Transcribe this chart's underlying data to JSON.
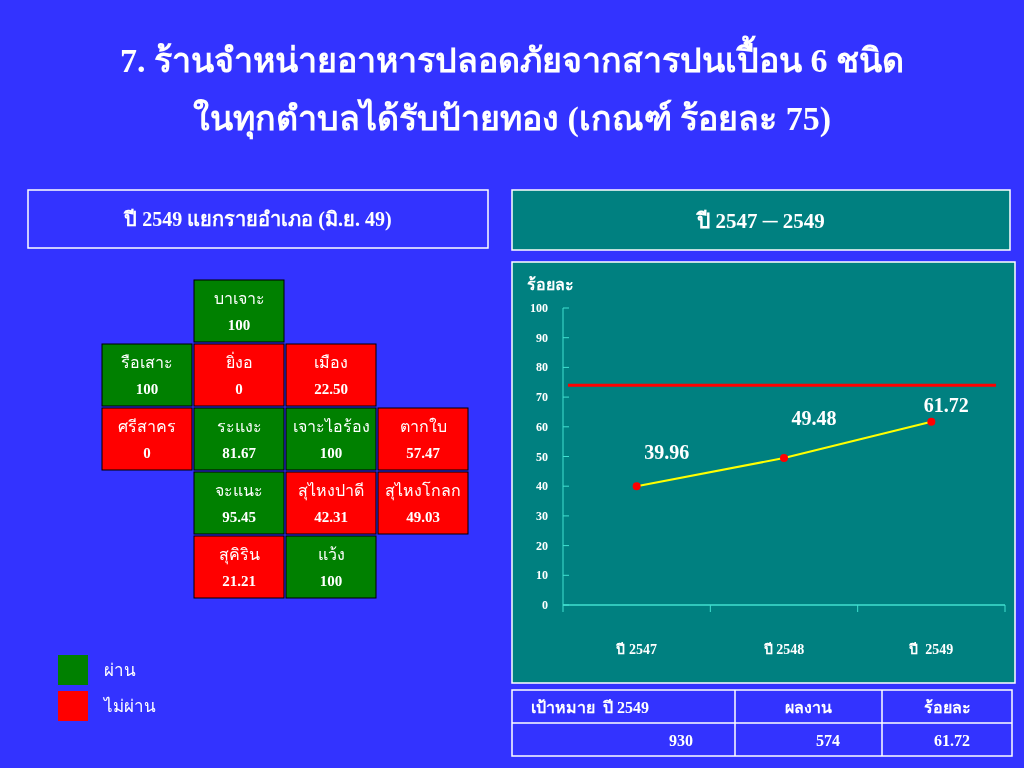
{
  "chart_data": [
    {
      "type": "other",
      "title": "7. ร้านจำหน่ายอาหารปลอดภัยจากสารปนเปื้อน 6 ชนิด\nในทุกตำบลได้รับป้ายทอง   (เกณฑ์ ร้อยละ 75)",
      "subtitle": "ปี 2549 แยกรายอำเภอ (มิ.ย. 49)",
      "categories": [
        "บาเจาะ",
        "รือเสาะ",
        "ยิ่งอ",
        "เมือง",
        "ศรีสาคร",
        "ระแงะ",
        "เจาะไอร้อง",
        "ตากใบ",
        "จะแนะ",
        "สุไหงปาดี",
        "สุไหงโกลก",
        "สุคิริน",
        "แว้ง"
      ],
      "series": [
        {
          "name": "ผ่าน",
          "color": "#008000",
          "values": [
            100,
            100,
            null,
            null,
            null,
            81.67,
            100,
            null,
            95.45,
            null,
            null,
            null,
            100
          ],
          "value_labels": [
            "100",
            "100",
            null,
            null,
            null,
            "81.67",
            "100",
            null,
            "95.45",
            null,
            null,
            null,
            "100"
          ]
        },
        {
          "name": "ไม่ผ่าน",
          "color": "#ff0000",
          "values": [
            null,
            null,
            0,
            22.5,
            0,
            null,
            null,
            57.47,
            null,
            42.31,
            49.03,
            21.21,
            null
          ],
          "value_labels": [
            null,
            null,
            "0",
            "22.50",
            "0",
            null,
            null,
            "57.47",
            null,
            "42.31",
            "49.03",
            "21.21",
            null
          ]
        }
      ],
      "legend": "bottom left"
    },
    {
      "type": "line",
      "title": "ปี 2547 ─ 2549",
      "ylabel": "ร้อยละ",
      "categories": [
        "ปี 2547",
        "ปี 2548",
        "ปี  2549"
      ],
      "series": [
        {
          "color": "#ffff00",
          "colors": [
            "#ff0000",
            "#ff0000",
            "#ff0000"
          ],
          "values": [
            39.96,
            49.48,
            61.72
          ]
        }
      ],
      "ylim": [
        0,
        100
      ],
      "yticks": [
        0,
        10,
        20,
        30,
        40,
        50,
        60,
        70,
        80,
        90,
        100
      ],
      "marker": "circle",
      "data_labels": true,
      "ref_lines": [
        {
          "axis": "y",
          "value": 74,
          "color": "#ff0000"
        }
      ]
    },
    {
      "type": "other",
      "categories": [
        "เป้าหมาย  ปี 2549",
        "ผลงาน",
        "ร้อยละ"
      ],
      "values": [
        930,
        574,
        61.72
      ],
      "data_labels": true
    }
  ]
}
